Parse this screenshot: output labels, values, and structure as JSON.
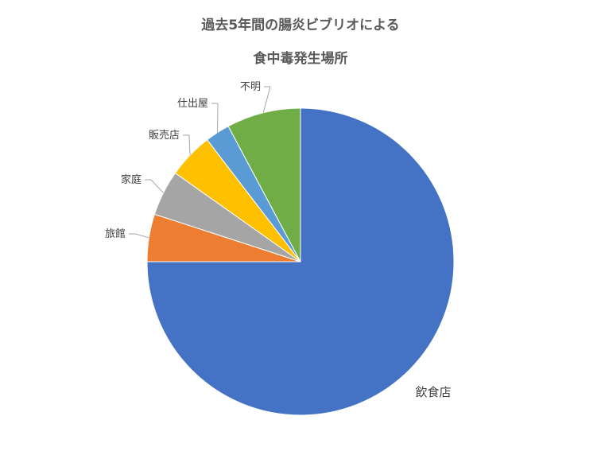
{
  "chart_data": {
    "type": "pie",
    "title_line1": "過去5年間の腸炎ビブリオによる",
    "title_line2": "食中毒発生場所",
    "slices": [
      {
        "label": "飲食店",
        "value": 75.0,
        "color": "#4472c4"
      },
      {
        "label": "旅館",
        "value": 5.0,
        "color": "#ed7d31"
      },
      {
        "label": "家庭",
        "value": 4.8,
        "color": "#a5a5a5"
      },
      {
        "label": "販売店",
        "value": 4.8,
        "color": "#ffc000"
      },
      {
        "label": "仕出屋",
        "value": 2.6,
        "color": "#5b9bd5"
      },
      {
        "label": "不明",
        "value": 7.8,
        "color": "#70ad47"
      }
    ],
    "legend": "none",
    "data_labels": "category-name-outside-with-leader-lines"
  }
}
